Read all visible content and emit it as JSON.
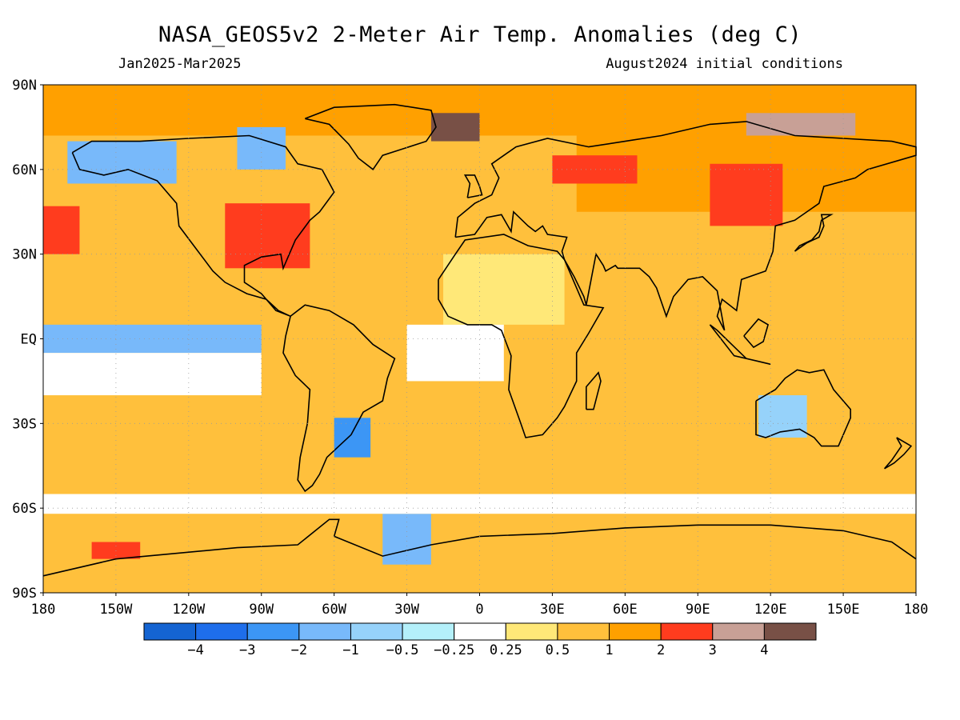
{
  "title": "NASA_GEOS5v2 2-Meter Air Temp. Anomalies (deg C)",
  "period": "Jan2025-Mar2025",
  "initial_conditions": "August2024 initial conditions",
  "map": {
    "lat_ticks": [
      {
        "value": 90,
        "label": "90N"
      },
      {
        "value": 60,
        "label": "60N"
      },
      {
        "value": 30,
        "label": "30N"
      },
      {
        "value": 0,
        "label": "EQ"
      },
      {
        "value": -30,
        "label": "30S"
      },
      {
        "value": -60,
        "label": "60S"
      },
      {
        "value": -90,
        "label": "90S"
      }
    ],
    "lon_ticks": [
      {
        "value": -180,
        "label": "180"
      },
      {
        "value": -150,
        "label": "150W"
      },
      {
        "value": -120,
        "label": "120W"
      },
      {
        "value": -90,
        "label": "90W"
      },
      {
        "value": -60,
        "label": "60W"
      },
      {
        "value": -30,
        "label": "30W"
      },
      {
        "value": 0,
        "label": "0"
      },
      {
        "value": 30,
        "label": "30E"
      },
      {
        "value": 60,
        "label": "60E"
      },
      {
        "value": 90,
        "label": "90E"
      },
      {
        "value": 120,
        "label": "120E"
      },
      {
        "value": 150,
        "label": "150E"
      },
      {
        "value": 180,
        "label": "180"
      }
    ],
    "gridlines": "dotted",
    "projection": "equirectangular"
  },
  "colorbar": {
    "colors": [
      "#1464d2",
      "#1e6eeb",
      "#3c96f5",
      "#78b9fa",
      "#96d2fa",
      "#b4f0fa",
      "#ffffff",
      "#ffe878",
      "#ffc03c",
      "#ffa000",
      "#ff3c1e",
      "#c8a096",
      "#785046"
    ],
    "labels": [
      "-4",
      "-3",
      "-2",
      "-1",
      "-0.5",
      "-0.25",
      "0.25",
      "0.5",
      "1",
      "2",
      "3",
      "4"
    ]
  },
  "regions": [
    {
      "name": "base",
      "color": "#ffc03c",
      "lon0": -180,
      "lat0": -90,
      "lon1": 180,
      "lat1": 90
    },
    {
      "name": "arctic-ocean",
      "color": "#ffa000",
      "lon0": -180,
      "lat0": 72,
      "lon1": 180,
      "lat1": 90
    },
    {
      "name": "siberia",
      "color": "#ffa000",
      "lon0": 40,
      "lat0": 45,
      "lon1": 180,
      "lat1": 72
    },
    {
      "name": "north-africa",
      "color": "#ffe878",
      "lon0": -15,
      "lat0": 5,
      "lon1": 35,
      "lat1": 30
    },
    {
      "name": "tropical-atlantic",
      "color": "#ffffff",
      "lon0": -30,
      "lat0": -15,
      "lon1": 10,
      "lat1": 5
    },
    {
      "name": "east-pacific-eq",
      "color": "#78b9fa",
      "lon0": -180,
      "lat0": -5,
      "lon1": -90,
      "lat1": 5
    },
    {
      "name": "east-pacific-s",
      "color": "#ffffff",
      "lon0": -180,
      "lat0": -20,
      "lon1": -90,
      "lat1": -5
    },
    {
      "name": "alaska",
      "color": "#78b9fa",
      "lon0": -170,
      "lat0": 55,
      "lon1": -125,
      "lat1": 70
    },
    {
      "name": "canada-arctic",
      "color": "#78b9fa",
      "lon0": -100,
      "lat0": 60,
      "lon1": -80,
      "lat1": 75
    },
    {
      "name": "eastern-us",
      "color": "#ff3c1e",
      "lon0": -105,
      "lat0": 25,
      "lon1": -70,
      "lat1": 48
    },
    {
      "name": "ne-pacific",
      "color": "#ff3c1e",
      "lon0": -180,
      "lat0": 30,
      "lon1": -165,
      "lat1": 47
    },
    {
      "name": "europe-russia",
      "color": "#ff3c1e",
      "lon0": 30,
      "lat0": 55,
      "lon1": 65,
      "lat1": 65
    },
    {
      "name": "siberia-hot",
      "color": "#ff3c1e",
      "lon0": 95,
      "lat0": 40,
      "lon1": 125,
      "lat1": 62
    },
    {
      "name": "greenland-sea",
      "color": "#785046",
      "lon0": -20,
      "lat0": 70,
      "lon1": 0,
      "lat1": 80
    },
    {
      "name": "east-siberian-sea",
      "color": "#c8a096",
      "lon0": 110,
      "lat0": 72,
      "lon1": 155,
      "lat1": 80
    },
    {
      "name": "south-america-se",
      "color": "#3c96f5",
      "lon0": -60,
      "lat0": -42,
      "lon1": -45,
      "lat1": -28
    },
    {
      "name": "antarctica-weddell",
      "color": "#78b9fa",
      "lon0": -40,
      "lat0": -80,
      "lon1": -20,
      "lat1": -62
    },
    {
      "name": "southern-ocean",
      "color": "#ffffff",
      "lon0": -180,
      "lat0": -62,
      "lon1": 180,
      "lat1": -55
    },
    {
      "name": "australia-interior",
      "color": "#96d2fa",
      "lon0": 115,
      "lat0": -35,
      "lon1": 135,
      "lat1": -20
    },
    {
      "name": "antarctica-ross",
      "color": "#ff3c1e",
      "lon0": -160,
      "lat0": -78,
      "lon1": -140,
      "lat1": -72
    }
  ]
}
